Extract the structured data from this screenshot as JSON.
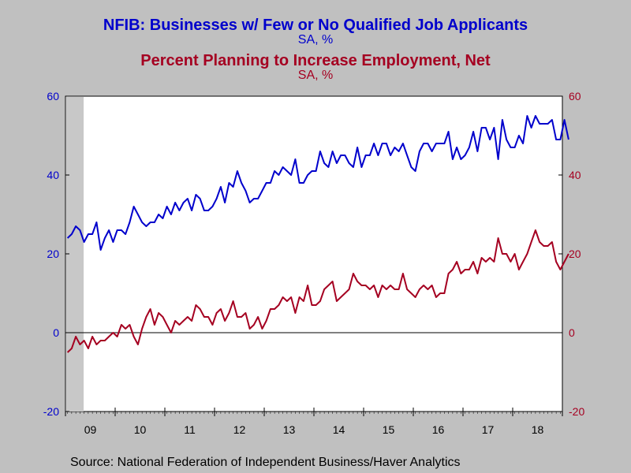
{
  "titles": {
    "title1": "NFIB: Businesses w/ Few or No Qualified Job Applicants",
    "title1_color": "#0000cc",
    "subtitle1": "SA, %",
    "title2": "Percent Planning to Increase Employment, Net",
    "title2_color": "#a50021",
    "subtitle2": "SA, %"
  },
  "source": "Source:  National Federation of Independent Business/Haver Analytics",
  "chart_data": {
    "type": "line",
    "x_start": "2009-01",
    "x_end": "2018-12",
    "frequency": "monthly",
    "x_tick_labels": [
      "09",
      "10",
      "11",
      "12",
      "13",
      "14",
      "15",
      "16",
      "17",
      "18"
    ],
    "y_left": {
      "ylim": [
        -20,
        60
      ],
      "ticks": [
        60,
        40,
        20,
        0,
        -20
      ]
    },
    "y_right": {
      "ylim": [
        -20,
        60
      ],
      "ticks": [
        60,
        40,
        20,
        0,
        -20
      ]
    },
    "zero_line": true,
    "grid": false,
    "recession_shading": {
      "from": "2009-01",
      "to": "2009-06"
    },
    "series": [
      {
        "name": "NFIB: Businesses w/ Few or No Qualified Job Applicants",
        "color": "#0000cc",
        "axis": "left",
        "values": [
          24,
          25,
          27,
          26,
          23,
          25,
          25,
          28,
          21,
          24,
          26,
          23,
          26,
          26,
          25,
          28,
          32,
          30,
          28,
          27,
          28,
          28,
          30,
          29,
          32,
          30,
          33,
          31,
          33,
          34,
          31,
          35,
          34,
          31,
          31,
          32,
          34,
          37,
          33,
          38,
          37,
          41,
          38,
          36,
          33,
          34,
          34,
          36,
          38,
          38,
          41,
          40,
          42,
          41,
          40,
          44,
          38,
          38,
          40,
          41,
          41,
          46,
          43,
          42,
          46,
          43,
          45,
          45,
          43,
          42,
          47,
          42,
          45,
          45,
          48,
          45,
          48,
          48,
          45,
          47,
          46,
          48,
          45,
          42,
          41,
          46,
          48,
          48,
          46,
          48,
          48,
          48,
          51,
          44,
          47,
          44,
          45,
          47,
          51,
          46,
          52,
          52,
          49,
          52,
          44,
          54,
          49,
          47,
          47,
          50,
          48,
          55,
          52,
          55,
          53,
          53,
          53,
          54,
          49,
          49,
          54,
          49
        ]
      },
      {
        "name": "Percent Planning to Increase Employment, Net",
        "color": "#a50021",
        "axis": "right",
        "values": [
          -5,
          -4,
          -1,
          -3,
          -2,
          -4,
          -1,
          -3,
          -2,
          -2,
          -1,
          0,
          -1,
          2,
          1,
          2,
          -1,
          -3,
          1,
          4,
          6,
          2,
          5,
          4,
          2,
          0,
          3,
          2,
          3,
          4,
          3,
          7,
          6,
          4,
          4,
          2,
          5,
          6,
          3,
          5,
          8,
          4,
          4,
          5,
          1,
          2,
          4,
          1,
          3,
          6,
          6,
          7,
          9,
          8,
          9,
          5,
          9,
          8,
          12,
          7,
          7,
          8,
          11,
          12,
          13,
          8,
          9,
          10,
          11,
          15,
          13,
          12,
          12,
          11,
          12,
          9,
          12,
          11,
          12,
          11,
          11,
          15,
          11,
          10,
          9,
          11,
          12,
          11,
          12,
          9,
          10,
          10,
          15,
          16,
          18,
          15,
          16,
          16,
          18,
          15,
          19,
          18,
          19,
          18,
          24,
          20,
          20,
          18,
          20,
          16,
          18,
          20,
          23,
          26,
          23,
          22,
          22,
          23,
          18,
          16,
          18,
          20
        ]
      }
    ]
  }
}
